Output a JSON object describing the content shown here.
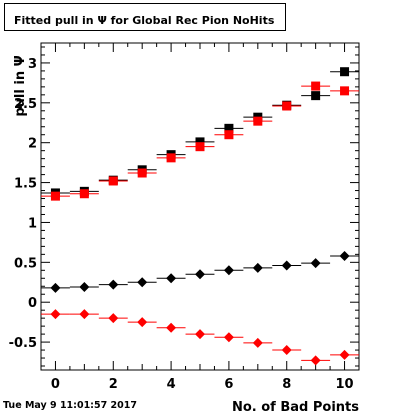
{
  "chart_data": {
    "type": "scatter",
    "title": "Fitted pull in  Ψ  for Global Rec Pion NoHits",
    "xlabel": "No. of Bad Points",
    "ylabel": "pull in  Ψ",
    "xlim": [
      -0.5,
      10.5
    ],
    "ylim": [
      -0.85,
      3.25
    ],
    "x_ticks": [
      "0",
      "2",
      "4",
      "6",
      "8",
      "10"
    ],
    "y_ticks": [
      "-0.5",
      "0",
      "0.5",
      "1",
      "1.5",
      "2",
      "2.5",
      "3"
    ],
    "x": [
      0,
      1,
      2,
      3,
      4,
      5,
      6,
      7,
      8,
      9,
      10
    ],
    "series": [
      {
        "marker": "square",
        "color": "#000000",
        "values": [
          1.37,
          1.39,
          1.53,
          1.66,
          1.85,
          2.01,
          2.18,
          2.32,
          2.47,
          2.59,
          2.89
        ]
      },
      {
        "marker": "square",
        "color": "#ff0000",
        "values": [
          1.33,
          1.36,
          1.52,
          1.62,
          1.81,
          1.95,
          2.1,
          2.27,
          2.46,
          2.71,
          2.65
        ]
      },
      {
        "marker": "diamond",
        "color": "#000000",
        "values": [
          0.18,
          0.19,
          0.22,
          0.25,
          0.3,
          0.35,
          0.4,
          0.43,
          0.46,
          0.49,
          0.58
        ]
      },
      {
        "marker": "diamond",
        "color": "#ff0000",
        "values": [
          -0.15,
          -0.15,
          -0.2,
          -0.25,
          -0.32,
          -0.4,
          -0.44,
          -0.51,
          -0.6,
          -0.73,
          -0.66
        ]
      }
    ],
    "grid": false,
    "legend": "none"
  },
  "footer": {
    "datestamp": "Tue May  9 11:01:57 2017"
  }
}
